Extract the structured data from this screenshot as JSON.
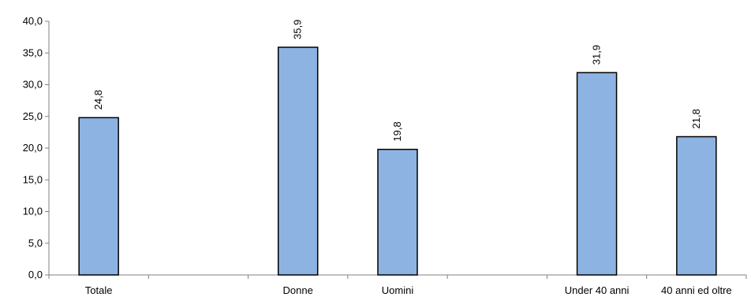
{
  "chart_data": {
    "type": "bar",
    "categories": [
      "Totale",
      "",
      "Donne",
      "Uomini",
      "",
      "Under 40 anni",
      "40 anni ed oltre"
    ],
    "values": [
      24.8,
      null,
      35.9,
      19.8,
      null,
      31.9,
      21.8
    ],
    "data_labels": [
      "24,8",
      "",
      "35,9",
      "19,8",
      "",
      "31,9",
      "21,8"
    ],
    "ylim": [
      0,
      40
    ],
    "yticks": [
      0,
      5,
      10,
      15,
      20,
      25,
      30,
      35,
      40
    ],
    "ytick_labels": [
      "0,0",
      "5,0",
      "10,0",
      "15,0",
      "20,0",
      "25,0",
      "30,0",
      "35,0",
      "40,0"
    ],
    "title": "",
    "xlabel": "",
    "ylabel": "",
    "grid": false,
    "bar_color": "#8db3e2",
    "bar_edge_color": "#000000"
  }
}
